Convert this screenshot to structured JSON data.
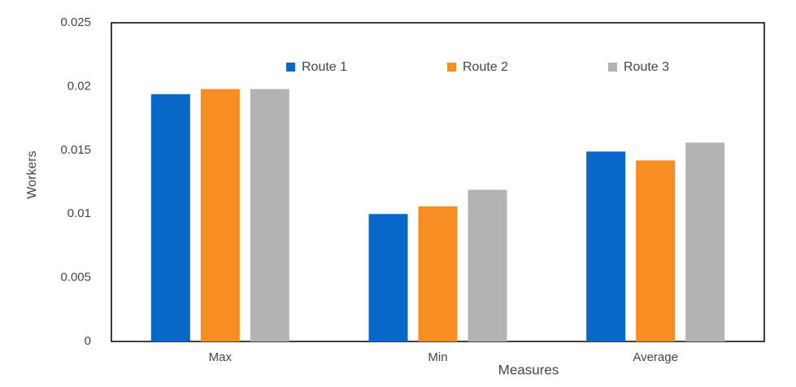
{
  "chart_data": {
    "type": "bar",
    "x_label": "Measures",
    "y_label": "Workers",
    "categories": [
      "Max",
      "Min",
      "Average"
    ],
    "series": [
      {
        "name": "Route 1",
        "color": "#0868c8",
        "values": [
          0.0194,
          0.01,
          0.0149
        ]
      },
      {
        "name": "Route 2",
        "color": "#f78c20",
        "values": [
          0.0198,
          0.0106,
          0.0142
        ]
      },
      {
        "name": "Route 3",
        "color": "#b3b3b3",
        "values": [
          0.0198,
          0.0119,
          0.0156
        ]
      }
    ],
    "ylim": [
      0,
      0.025
    ],
    "yticks": [
      0,
      0.005,
      0.01,
      0.015,
      0.02,
      0.025
    ],
    "grid": false,
    "legend": "top"
  }
}
